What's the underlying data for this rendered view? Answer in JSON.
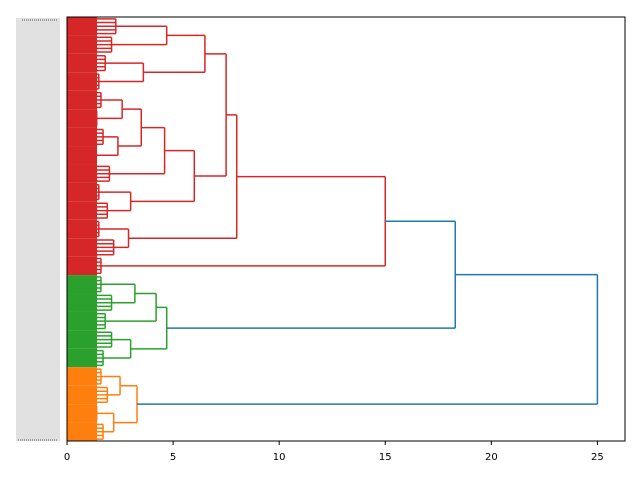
{
  "chart_data": {
    "type": "dendrogram",
    "orientation": "right",
    "xlim": [
      0,
      26.3
    ],
    "xticks": [
      0,
      5,
      10,
      15,
      20,
      25
    ],
    "tree": {
      "height": 25,
      "color": "#1f77b4",
      "children": [
        {
          "height": 18.3,
          "color": "#1f77b4",
          "children": [
            {
              "height": 15,
              "color": "#d62728",
              "children": [
                {
                  "height": 8.0,
                  "children": [
                    {
                      "height": 7.5,
                      "children": [
                        {
                          "height": 6.5,
                          "children": [
                            {
                              "height": 4.7,
                              "children": [
                                {
                                  "height": 2.3
                                },
                                {
                                  "height": 2.1
                                }
                              ]
                            },
                            {
                              "height": 3.6,
                              "children": [
                                {
                                  "height": 1.8
                                },
                                {
                                  "height": 1.5
                                }
                              ]
                            }
                          ]
                        },
                        {
                          "height": 6.0,
                          "children": [
                            {
                              "height": 4.6,
                              "children": [
                                {
                                  "height": 3.5,
                                  "children": [
                                    {
                                      "height": 2.6,
                                      "children": [
                                        {
                                          "height": 1.6
                                        },
                                        {
                                          "height": 1.4
                                        }
                                      ]
                                    },
                                    {
                                      "height": 2.4,
                                      "children": [
                                        {
                                          "height": 1.7
                                        },
                                        {
                                          "height": 1.3
                                        }
                                      ]
                                    }
                                  ]
                                },
                                {
                                  "height": 2.0
                                }
                              ]
                            },
                            {
                              "height": 3.0,
                              "children": [
                                {
                                  "height": 1.5
                                },
                                {
                                  "height": 1.9
                                }
                              ]
                            }
                          ]
                        }
                      ]
                    },
                    {
                      "height": 2.9,
                      "children": [
                        {
                          "height": 1.5
                        },
                        {
                          "height": 2.2
                        }
                      ]
                    }
                  ]
                },
                {
                  "height": 1.6
                }
              ]
            },
            {
              "height": 4.7,
              "color": "#2ca02c",
              "children": [
                {
                  "height": 4.2,
                  "children": [
                    {
                      "height": 3.2,
                      "children": [
                        {
                          "height": 1.6
                        },
                        {
                          "height": 2.1
                        }
                      ]
                    },
                    {
                      "height": 1.8
                    }
                  ]
                },
                {
                  "height": 3.0,
                  "children": [
                    {
                      "height": 2.1
                    },
                    {
                      "height": 1.7
                    }
                  ]
                }
              ]
            }
          ]
        },
        {
          "height": 3.3,
          "color": "#ff7f0e",
          "children": [
            {
              "height": 2.5,
              "children": [
                {
                  "height": 1.6
                },
                {
                  "height": 1.9
                }
              ]
            },
            {
              "height": 2.2,
              "children": [
                {
                  "height": 1.4
                },
                {
                  "height": 1.7
                }
              ]
            }
          ]
        }
      ]
    }
  }
}
